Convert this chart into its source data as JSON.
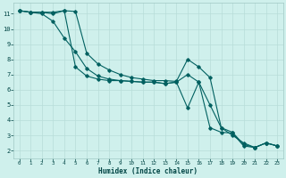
{
  "xlabel": "Humidex (Indice chaleur)",
  "bg_color": "#cff0ec",
  "grid_color": "#b8ddd8",
  "line_color": "#006060",
  "xlim": [
    -0.5,
    23.5
  ],
  "ylim": [
    1.5,
    11.7
  ],
  "xticks": [
    0,
    1,
    2,
    3,
    4,
    5,
    6,
    7,
    8,
    9,
    10,
    11,
    12,
    13,
    14,
    15,
    16,
    17,
    18,
    19,
    20,
    21,
    22,
    23
  ],
  "yticks": [
    2,
    3,
    4,
    5,
    6,
    7,
    8,
    9,
    10,
    11
  ],
  "line1_x": [
    0,
    1,
    2,
    3,
    4,
    5,
    6,
    7,
    8,
    9,
    10,
    11,
    12,
    13,
    14,
    15,
    16,
    17,
    18,
    19,
    20,
    21,
    22,
    23
  ],
  "line1_y": [
    11.2,
    11.1,
    11.1,
    11.1,
    11.2,
    7.5,
    6.9,
    6.7,
    6.6,
    6.6,
    6.55,
    6.5,
    6.5,
    6.4,
    6.5,
    4.8,
    6.5,
    3.5,
    3.2,
    3.15,
    2.3,
    2.2,
    2.5,
    2.3
  ],
  "line2_x": [
    0,
    1,
    2,
    3,
    4,
    5,
    6,
    7,
    8,
    9,
    10,
    11,
    12,
    13,
    14,
    15,
    16,
    17,
    18,
    19,
    20,
    21,
    22,
    23
  ],
  "line2_y": [
    11.2,
    11.1,
    11.0,
    10.5,
    9.4,
    8.5,
    7.4,
    6.9,
    6.7,
    6.6,
    6.55,
    6.5,
    6.5,
    6.4,
    6.5,
    7.0,
    6.5,
    5.0,
    3.5,
    3.0,
    2.5,
    2.2,
    2.5,
    2.3
  ],
  "line3_x": [
    0,
    1,
    2,
    3,
    4,
    5,
    6,
    7,
    8,
    9,
    10,
    11,
    12,
    13,
    14,
    15,
    16,
    17,
    18,
    19,
    20,
    21,
    22,
    23
  ],
  "line3_y": [
    11.2,
    11.1,
    11.1,
    11.0,
    11.2,
    11.15,
    8.4,
    7.7,
    7.3,
    7.0,
    6.8,
    6.7,
    6.6,
    6.6,
    6.55,
    8.0,
    7.5,
    6.8,
    3.5,
    3.2,
    2.4,
    2.2,
    2.5,
    2.3
  ]
}
